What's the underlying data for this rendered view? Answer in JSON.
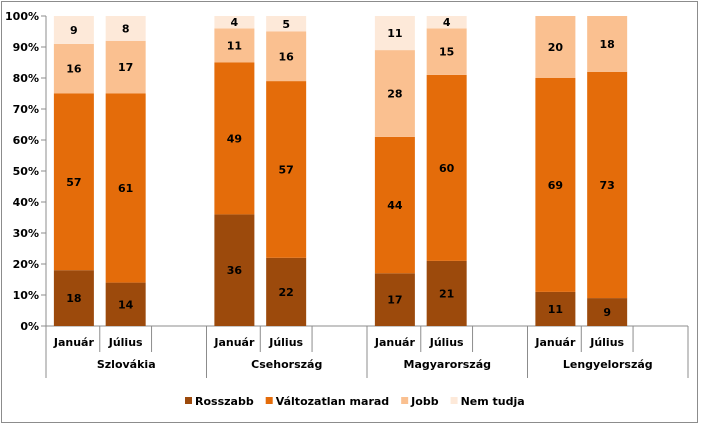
{
  "chart_data": {
    "type": "bar",
    "stacked": true,
    "normalized": true,
    "ylim": [
      0,
      100
    ],
    "yticks": [
      "0%",
      "10%",
      "20%",
      "30%",
      "40%",
      "50%",
      "60%",
      "70%",
      "80%",
      "90%",
      "100%"
    ],
    "groups": [
      {
        "name": "Szlovákia",
        "categories": [
          "Január",
          "Július"
        ]
      },
      {
        "name": "Csehország",
        "categories": [
          "Január",
          "Július"
        ]
      },
      {
        "name": "Magyarország",
        "categories": [
          "Január",
          "Július"
        ]
      },
      {
        "name": "Lengyelország",
        "categories": [
          "Január",
          "Július"
        ]
      }
    ],
    "series": [
      {
        "name": "Rosszabb",
        "color": "#9c4a0c",
        "values": [
          18,
          14,
          36,
          22,
          17,
          21,
          11,
          9
        ]
      },
      {
        "name": "Változatlan marad",
        "color": "#e46c0a",
        "values": [
          57,
          61,
          49,
          57,
          44,
          60,
          69,
          73
        ]
      },
      {
        "name": "Jobb",
        "color": "#fac090",
        "values": [
          16,
          17,
          11,
          16,
          28,
          15,
          20,
          18
        ]
      },
      {
        "name": "Nem tudja",
        "color": "#fde9d9",
        "values": [
          9,
          8,
          4,
          5,
          11,
          4,
          null,
          null
        ]
      }
    ],
    "legend_position": "bottom"
  }
}
